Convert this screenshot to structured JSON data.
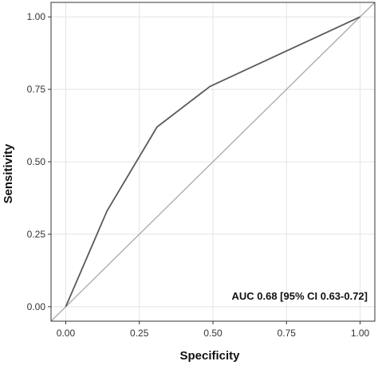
{
  "chart_data": {
    "type": "line",
    "title": "",
    "xlabel": "Specificity",
    "ylabel": "Sensitivity",
    "xlim": [
      -0.05,
      1.05
    ],
    "ylim": [
      -0.05,
      1.05
    ],
    "x_ticks": [
      0,
      0.25,
      0.5,
      0.75,
      1
    ],
    "y_ticks": [
      0,
      0.25,
      0.5,
      0.75,
      1
    ],
    "x_tick_labels": [
      "0.00",
      "0.25",
      "0.50",
      "0.75",
      "1.00"
    ],
    "y_tick_labels": [
      "0.00",
      "0.25",
      "0.50",
      "0.75",
      "1.00"
    ],
    "grid": true,
    "series": [
      {
        "x": [
          0.0,
          0.14,
          0.31,
          0.49,
          1.0
        ],
        "y": [
          0.0,
          0.33,
          0.62,
          0.76,
          1.0
        ],
        "color": "#5a5a5a"
      }
    ],
    "reference_line": {
      "x": [
        0,
        1
      ],
      "y": [
        0,
        1
      ],
      "color": "#a9a9a9"
    },
    "annotation": "AUC 0.68 [95% CI 0.63-0.72]"
  },
  "colors": {
    "grid": "#e4e4e4",
    "panel_border": "#333333",
    "curve": "#5a5a5a",
    "reference": "#a9a9a9"
  }
}
